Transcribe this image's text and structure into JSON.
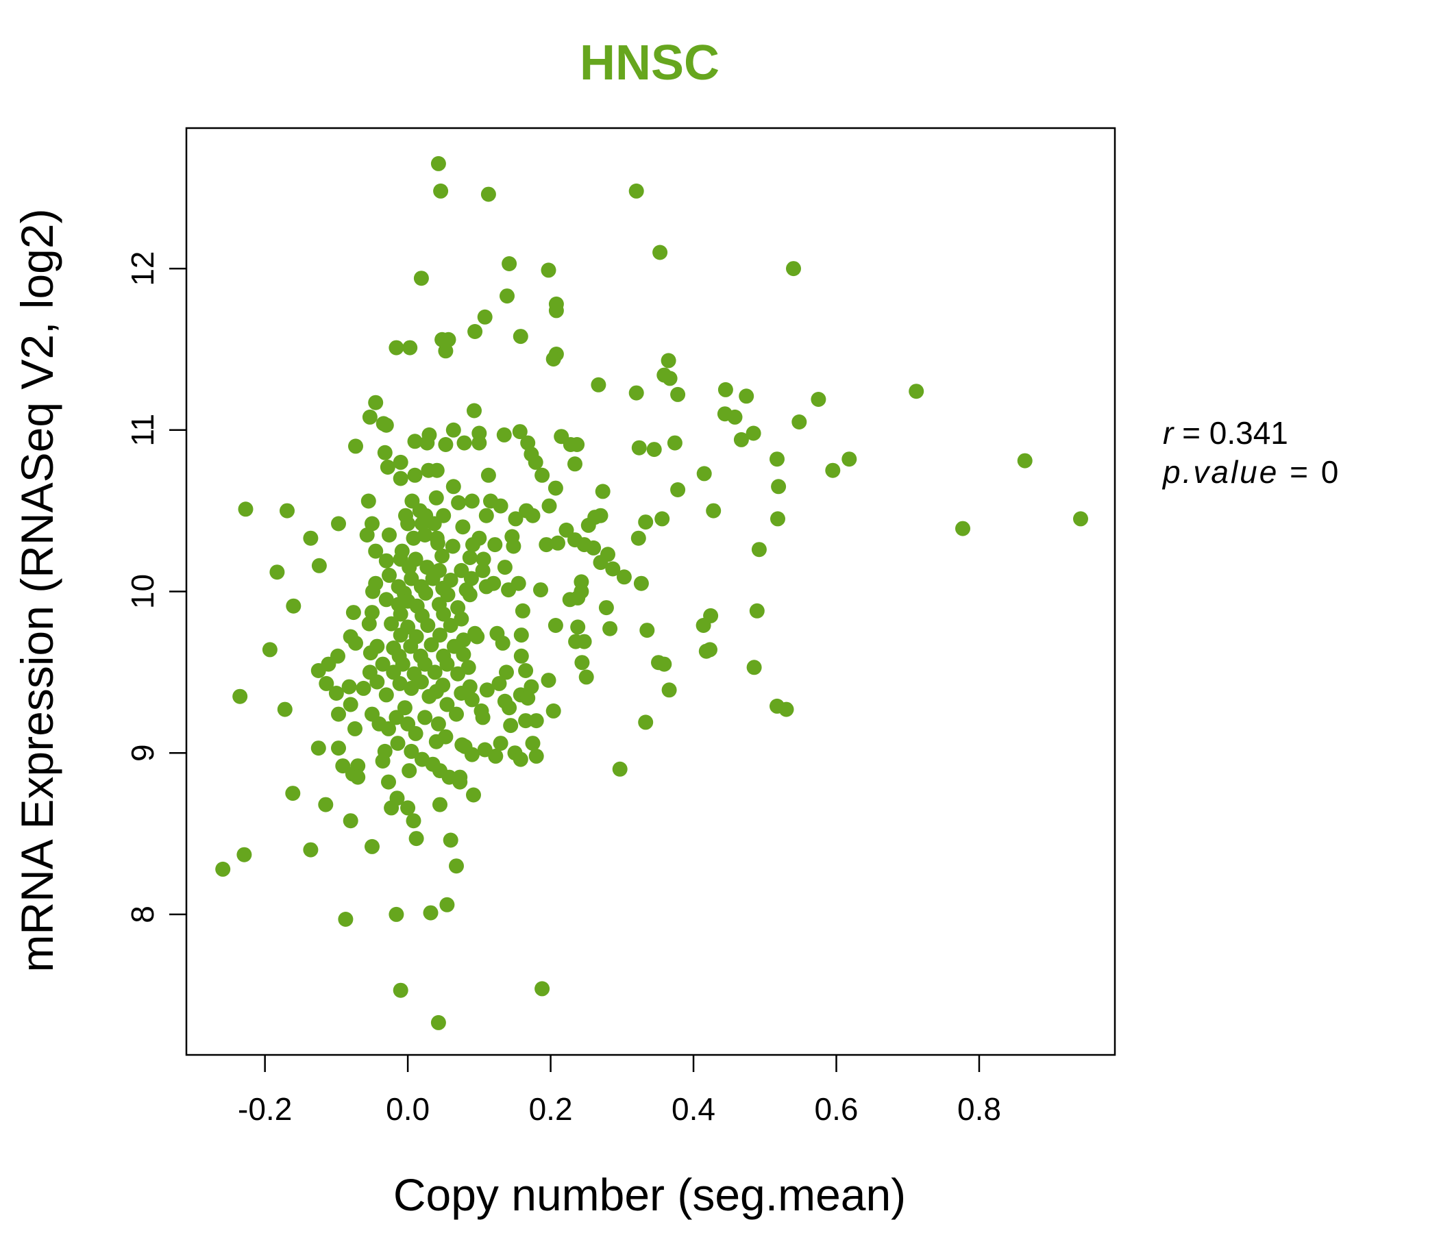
{
  "chart_data": {
    "type": "scatter",
    "title": "HNSC",
    "title_color": "#66a61e",
    "point_color": "#66a61e",
    "xlabel": "Copy number (seg.mean)",
    "ylabel": "mRNA Expression (RNASeq V2, log2)",
    "xlim": [
      -0.31,
      0.99
    ],
    "ylim": [
      7.13,
      12.87
    ],
    "x_ticks": [
      -0.2,
      0.0,
      0.2,
      0.4,
      0.6,
      0.8
    ],
    "x_tick_labels": [
      "-0.2",
      "0.0",
      "0.2",
      "0.4",
      "0.6",
      "0.8"
    ],
    "y_ticks": [
      8,
      9,
      10,
      11,
      12
    ],
    "y_tick_labels": [
      "8",
      "9",
      "10",
      "11",
      "12"
    ],
    "grid": false,
    "annotations": [
      {
        "label": "r",
        "value": "0.341"
      },
      {
        "label": "p.value",
        "value": "0"
      }
    ],
    "points": [
      [
        0.043,
        12.65
      ],
      [
        0.046,
        12.48
      ],
      [
        0.113,
        12.46
      ],
      [
        0.32,
        12.48
      ],
      [
        0.353,
        12.1
      ],
      [
        0.019,
        11.94
      ],
      [
        0.142,
        12.03
      ],
      [
        0.197,
        11.99
      ],
      [
        0.54,
        12.0
      ],
      [
        0.139,
        11.83
      ],
      [
        0.208,
        11.78
      ],
      [
        0.208,
        11.74
      ],
      [
        0.108,
        11.7
      ],
      [
        0.094,
        11.61
      ],
      [
        0.158,
        11.58
      ],
      [
        0.048,
        11.56
      ],
      [
        0.057,
        11.56
      ],
      [
        -0.016,
        11.51
      ],
      [
        0.003,
        11.51
      ],
      [
        0.053,
        11.49
      ],
      [
        0.208,
        11.47
      ],
      [
        0.204,
        11.44
      ],
      [
        0.365,
        11.43
      ],
      [
        0.359,
        11.34
      ],
      [
        0.367,
        11.32
      ],
      [
        0.267,
        11.28
      ],
      [
        0.445,
        11.25
      ],
      [
        0.32,
        11.23
      ],
      [
        0.378,
        11.22
      ],
      [
        0.474,
        11.21
      ],
      [
        0.575,
        11.19
      ],
      [
        0.712,
        11.24
      ],
      [
        -0.045,
        11.17
      ],
      [
        0.093,
        11.12
      ],
      [
        0.444,
        11.1
      ],
      [
        0.458,
        11.08
      ],
      [
        -0.053,
        11.08
      ],
      [
        -0.034,
        11.04
      ],
      [
        -0.03,
        11.03
      ],
      [
        0.548,
        11.05
      ],
      [
        0.064,
        11.0
      ],
      [
        0.1,
        10.98
      ],
      [
        0.03,
        10.97
      ],
      [
        0.135,
        10.97
      ],
      [
        0.157,
        10.99
      ],
      [
        0.215,
        10.96
      ],
      [
        0.484,
        10.98
      ],
      [
        0.467,
        10.94
      ],
      [
        0.374,
        10.92
      ],
      [
        0.01,
        10.93
      ],
      [
        0.027,
        10.92
      ],
      [
        0.053,
        10.91
      ],
      [
        0.079,
        10.92
      ],
      [
        0.1,
        10.92
      ],
      [
        0.168,
        10.92
      ],
      [
        0.228,
        10.91
      ],
      [
        0.237,
        10.91
      ],
      [
        -0.073,
        10.9
      ],
      [
        0.324,
        10.89
      ],
      [
        0.345,
        10.88
      ],
      [
        0.173,
        10.85
      ],
      [
        -0.032,
        10.86
      ],
      [
        0.618,
        10.82
      ],
      [
        0.517,
        10.82
      ],
      [
        0.864,
        10.81
      ],
      [
        -0.01,
        10.8
      ],
      [
        0.179,
        10.8
      ],
      [
        0.234,
        10.79
      ],
      [
        -0.028,
        10.77
      ],
      [
        0.595,
        10.75
      ],
      [
        0.029,
        10.75
      ],
      [
        0.041,
        10.75
      ],
      [
        0.01,
        10.72
      ],
      [
        -0.01,
        10.7
      ],
      [
        0.113,
        10.72
      ],
      [
        0.188,
        10.72
      ],
      [
        0.415,
        10.73
      ],
      [
        0.064,
        10.65
      ],
      [
        0.207,
        10.64
      ],
      [
        0.519,
        10.65
      ],
      [
        0.273,
        10.62
      ],
      [
        0.378,
        10.63
      ],
      [
        -0.055,
        10.56
      ],
      [
        0.006,
        10.56
      ],
      [
        0.04,
        10.58
      ],
      [
        0.071,
        10.55
      ],
      [
        0.09,
        10.56
      ],
      [
        0.116,
        10.56
      ],
      [
        0.13,
        10.53
      ],
      [
        0.166,
        10.5
      ],
      [
        0.198,
        10.53
      ],
      [
        -0.227,
        10.51
      ],
      [
        -0.169,
        10.5
      ],
      [
        0.428,
        10.5
      ],
      [
        0.017,
        10.5
      ],
      [
        0.025,
        10.47
      ],
      [
        -0.003,
        10.47
      ],
      [
        0.05,
        10.47
      ],
      [
        0.11,
        10.47
      ],
      [
        0.151,
        10.45
      ],
      [
        0.175,
        10.47
      ],
      [
        0.262,
        10.46
      ],
      [
        0.27,
        10.47
      ],
      [
        0.356,
        10.45
      ],
      [
        0.518,
        10.45
      ],
      [
        0.942,
        10.45
      ],
      [
        -0.097,
        10.42
      ],
      [
        -0.05,
        10.42
      ],
      [
        0.0,
        10.42
      ],
      [
        0.02,
        10.42
      ],
      [
        0.037,
        10.42
      ],
      [
        0.077,
        10.4
      ],
      [
        0.333,
        10.43
      ],
      [
        0.253,
        10.41
      ],
      [
        0.777,
        10.39
      ],
      [
        0.222,
        10.38
      ],
      [
        -0.136,
        10.33
      ],
      [
        -0.057,
        10.35
      ],
      [
        -0.026,
        10.35
      ],
      [
        0.008,
        10.33
      ],
      [
        0.024,
        10.35
      ],
      [
        0.041,
        10.33
      ],
      [
        0.1,
        10.33
      ],
      [
        0.146,
        10.34
      ],
      [
        0.21,
        10.3
      ],
      [
        0.234,
        10.32
      ],
      [
        0.323,
        10.33
      ],
      [
        0.492,
        10.26
      ],
      [
        0.194,
        10.29
      ],
      [
        0.247,
        10.29
      ],
      [
        0.26,
        10.27
      ],
      [
        0.28,
        10.23
      ],
      [
        0.042,
        10.3
      ],
      [
        0.063,
        10.28
      ],
      [
        0.091,
        10.29
      ],
      [
        0.122,
        10.29
      ],
      [
        0.148,
        10.28
      ],
      [
        -0.045,
        10.25
      ],
      [
        -0.008,
        10.25
      ],
      [
        -0.03,
        10.19
      ],
      [
        -0.01,
        10.2
      ],
      [
        0.011,
        10.2
      ],
      [
        0.048,
        10.22
      ],
      [
        0.087,
        10.21
      ],
      [
        0.106,
        10.2
      ],
      [
        0.136,
        10.15
      ],
      [
        -0.124,
        10.16
      ],
      [
        0.27,
        10.18
      ],
      [
        0.287,
        10.14
      ],
      [
        0.002,
        10.15
      ],
      [
        0.027,
        10.15
      ],
      [
        0.044,
        10.13
      ],
      [
        0.075,
        10.13
      ],
      [
        0.105,
        10.13
      ],
      [
        -0.183,
        10.12
      ],
      [
        0.303,
        10.09
      ],
      [
        -0.026,
        10.1
      ],
      [
        0.005,
        10.08
      ],
      [
        0.035,
        10.08
      ],
      [
        0.06,
        10.07
      ],
      [
        0.089,
        10.08
      ],
      [
        0.12,
        10.05
      ],
      [
        0.155,
        10.05
      ],
      [
        0.243,
        10.06
      ],
      [
        0.327,
        10.05
      ],
      [
        -0.045,
        10.05
      ],
      [
        -0.013,
        10.03
      ],
      [
        0.019,
        10.03
      ],
      [
        0.049,
        10.02
      ],
      [
        0.082,
        10.01
      ],
      [
        0.11,
        10.03
      ],
      [
        0.141,
        10.01
      ],
      [
        0.186,
        10.01
      ],
      [
        0.243,
        10.0
      ],
      [
        -0.049,
        10.0
      ],
      [
        -0.005,
        9.99
      ],
      [
        0.025,
        9.99
      ],
      [
        0.056,
        9.98
      ],
      [
        0.087,
        9.98
      ],
      [
        0.238,
        9.96
      ],
      [
        0.227,
        9.95
      ],
      [
        -0.03,
        9.95
      ],
      [
        0.0,
        9.94
      ],
      [
        -0.16,
        9.91
      ],
      [
        0.278,
        9.9
      ],
      [
        -0.013,
        9.92
      ],
      [
        0.013,
        9.91
      ],
      [
        0.044,
        9.92
      ],
      [
        0.07,
        9.9
      ],
      [
        0.161,
        9.88
      ],
      [
        -0.076,
        9.87
      ],
      [
        -0.05,
        9.87
      ],
      [
        0.489,
        9.88
      ],
      [
        0.424,
        9.85
      ],
      [
        -0.01,
        9.86
      ],
      [
        0.02,
        9.85
      ],
      [
        0.05,
        9.86
      ],
      [
        0.075,
        9.83
      ],
      [
        -0.054,
        9.8
      ],
      [
        0.414,
        9.79
      ],
      [
        0.207,
        9.79
      ],
      [
        0.238,
        9.78
      ],
      [
        0.283,
        9.77
      ],
      [
        0.335,
        9.76
      ],
      [
        -0.023,
        9.8
      ],
      [
        0.0,
        9.78
      ],
      [
        0.028,
        9.79
      ],
      [
        0.06,
        9.79
      ],
      [
        0.094,
        9.74
      ],
      [
        0.125,
        9.74
      ],
      [
        0.159,
        9.73
      ],
      [
        -0.08,
        9.72
      ],
      [
        -0.01,
        9.73
      ],
      [
        0.012,
        9.72
      ],
      [
        0.045,
        9.73
      ],
      [
        0.078,
        9.7
      ],
      [
        0.097,
        9.72
      ],
      [
        0.133,
        9.68
      ],
      [
        0.235,
        9.69
      ],
      [
        0.247,
        9.69
      ],
      [
        -0.193,
        9.64
      ],
      [
        -0.073,
        9.68
      ],
      [
        -0.043,
        9.66
      ],
      [
        -0.02,
        9.65
      ],
      [
        0.004,
        9.66
      ],
      [
        0.033,
        9.67
      ],
      [
        0.065,
        9.66
      ],
      [
        0.418,
        9.63
      ],
      [
        0.423,
        9.64
      ],
      [
        -0.098,
        9.6
      ],
      [
        -0.052,
        9.62
      ],
      [
        -0.012,
        9.6
      ],
      [
        0.018,
        9.6
      ],
      [
        0.05,
        9.6
      ],
      [
        0.078,
        9.61
      ],
      [
        0.159,
        9.6
      ],
      [
        0.244,
        9.56
      ],
      [
        0.351,
        9.56
      ],
      [
        0.359,
        9.55
      ],
      [
        -0.111,
        9.55
      ],
      [
        -0.035,
        9.55
      ],
      [
        -0.007,
        9.55
      ],
      [
        0.024,
        9.55
      ],
      [
        0.055,
        9.55
      ],
      [
        0.085,
        9.53
      ],
      [
        0.138,
        9.5
      ],
      [
        0.165,
        9.51
      ],
      [
        0.485,
        9.53
      ],
      [
        -0.125,
        9.51
      ],
      [
        -0.053,
        9.5
      ],
      [
        -0.02,
        9.5
      ],
      [
        0.009,
        9.49
      ],
      [
        0.038,
        9.5
      ],
      [
        0.07,
        9.49
      ],
      [
        0.197,
        9.45
      ],
      [
        0.25,
        9.47
      ],
      [
        -0.114,
        9.43
      ],
      [
        -0.082,
        9.41
      ],
      [
        -0.043,
        9.44
      ],
      [
        -0.011,
        9.43
      ],
      [
        0.019,
        9.44
      ],
      [
        0.049,
        9.42
      ],
      [
        0.087,
        9.41
      ],
      [
        0.128,
        9.43
      ],
      [
        0.173,
        9.41
      ],
      [
        -0.062,
        9.4
      ],
      [
        0.005,
        9.4
      ],
      [
        0.04,
        9.38
      ],
      [
        0.075,
        9.37
      ],
      [
        0.111,
        9.39
      ],
      [
        0.158,
        9.36
      ],
      [
        0.366,
        9.39
      ],
      [
        -0.235,
        9.35
      ],
      [
        -0.1,
        9.37
      ],
      [
        -0.03,
        9.36
      ],
      [
        0.03,
        9.35
      ],
      [
        0.09,
        9.33
      ],
      [
        0.136,
        9.32
      ],
      [
        0.168,
        9.34
      ],
      [
        0.517,
        9.29
      ],
      [
        0.53,
        9.27
      ],
      [
        -0.172,
        9.27
      ],
      [
        -0.08,
        9.3
      ],
      [
        -0.004,
        9.28
      ],
      [
        0.055,
        9.3
      ],
      [
        0.103,
        9.26
      ],
      [
        0.142,
        9.28
      ],
      [
        0.204,
        9.26
      ],
      [
        -0.097,
        9.24
      ],
      [
        -0.05,
        9.24
      ],
      [
        -0.016,
        9.22
      ],
      [
        0.024,
        9.22
      ],
      [
        0.068,
        9.24
      ],
      [
        0.105,
        9.22
      ],
      [
        0.165,
        9.2
      ],
      [
        0.333,
        9.19
      ],
      [
        -0.04,
        9.18
      ],
      [
        0.0,
        9.18
      ],
      [
        0.043,
        9.18
      ],
      [
        0.144,
        9.17
      ],
      [
        0.18,
        9.2
      ],
      [
        -0.074,
        9.15
      ],
      [
        -0.027,
        9.15
      ],
      [
        0.011,
        9.12
      ],
      [
        0.053,
        9.1
      ],
      [
        -0.014,
        9.06
      ],
      [
        0.04,
        9.07
      ],
      [
        0.076,
        9.05
      ],
      [
        0.13,
        9.06
      ],
      [
        0.175,
        9.06
      ],
      [
        -0.125,
        9.03
      ],
      [
        -0.097,
        9.03
      ],
      [
        -0.032,
        9.01
      ],
      [
        0.005,
        9.01
      ],
      [
        0.08,
        9.04
      ],
      [
        0.108,
        9.02
      ],
      [
        0.15,
        9.0
      ],
      [
        -0.035,
        8.95
      ],
      [
        0.02,
        8.96
      ],
      [
        0.09,
        8.99
      ],
      [
        0.123,
        8.98
      ],
      [
        0.158,
        8.96
      ],
      [
        0.18,
        8.98
      ],
      [
        -0.091,
        8.92
      ],
      [
        -0.07,
        8.92
      ],
      [
        0.002,
        8.89
      ],
      [
        0.035,
        8.93
      ],
      [
        0.045,
        8.89
      ],
      [
        0.297,
        8.9
      ],
      [
        -0.077,
        8.87
      ],
      [
        -0.07,
        8.85
      ],
      [
        0.058,
        8.85
      ],
      [
        0.073,
        8.85
      ],
      [
        0.073,
        8.82
      ],
      [
        -0.027,
        8.82
      ],
      [
        -0.161,
        8.75
      ],
      [
        0.092,
        8.74
      ],
      [
        -0.015,
        8.72
      ],
      [
        -0.115,
        8.68
      ],
      [
        0.045,
        8.68
      ],
      [
        -0.023,
        8.66
      ],
      [
        0.0,
        8.66
      ],
      [
        -0.08,
        8.58
      ],
      [
        0.008,
        8.58
      ],
      [
        0.06,
        8.46
      ],
      [
        0.012,
        8.47
      ],
      [
        -0.136,
        8.4
      ],
      [
        -0.05,
        8.42
      ],
      [
        -0.229,
        8.37
      ],
      [
        0.068,
        8.3
      ],
      [
        -0.259,
        8.28
      ],
      [
        0.055,
        8.06
      ],
      [
        0.032,
        8.01
      ],
      [
        -0.016,
        8.0
      ],
      [
        -0.087,
        7.97
      ],
      [
        0.188,
        7.54
      ],
      [
        -0.01,
        7.53
      ],
      [
        0.043,
        7.33
      ]
    ]
  }
}
